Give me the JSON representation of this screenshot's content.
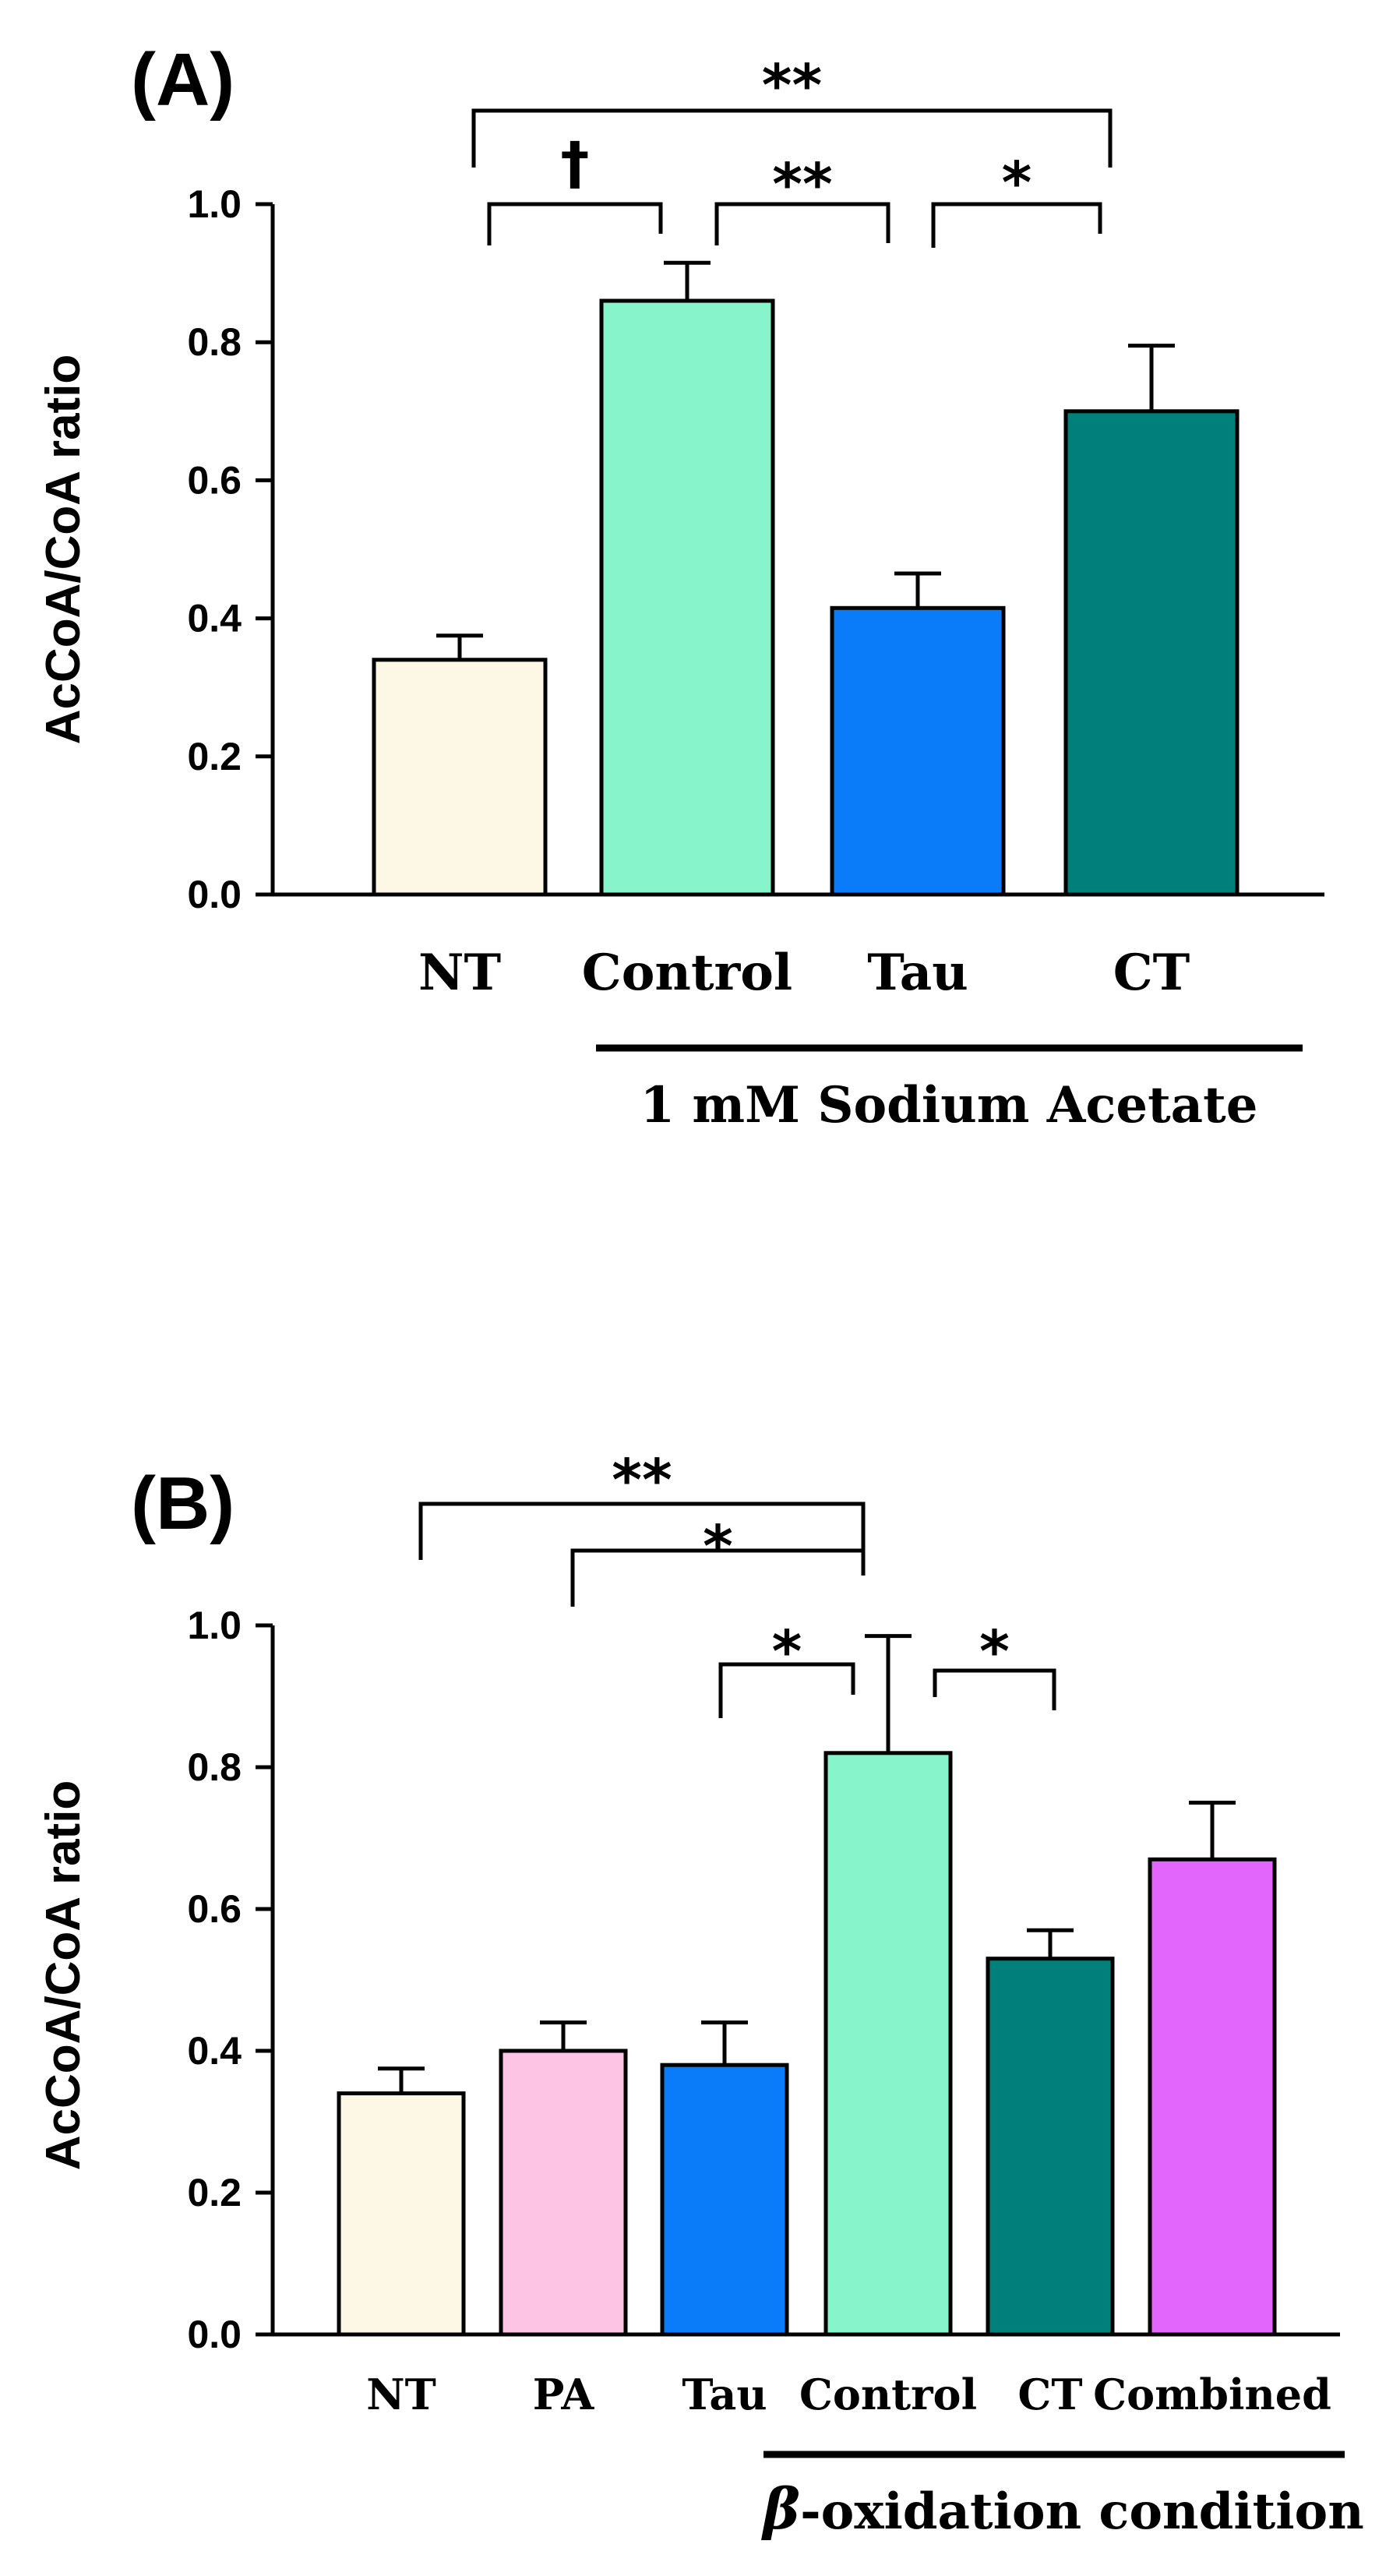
{
  "chart_data": [
    {
      "panel": "(A)",
      "type": "bar",
      "ylabel": "AcCoA/CoA ratio",
      "ylim": [
        0,
        1.0
      ],
      "yticks": [
        "0.0",
        "0.2",
        "0.4",
        "0.6",
        "0.8",
        "1.0"
      ],
      "categories": [
        "NT",
        "Control",
        "Tau",
        "CT"
      ],
      "values": [
        0.34,
        0.86,
        0.415,
        0.7
      ],
      "errors": [
        0.035,
        0.055,
        0.05,
        0.095
      ],
      "colors": [
        "#fdf8e6",
        "#88f4cc",
        "#0b7cf9",
        "#007f7b"
      ],
      "group_label": "1 mM Sodium Acetate",
      "group_categories": [
        "Control",
        "Tau",
        "CT"
      ],
      "significance": [
        {
          "from": "NT",
          "to": "CT",
          "label": "**"
        },
        {
          "from": "NT",
          "to": "Control",
          "label": "†"
        },
        {
          "from": "Control",
          "to": "Tau",
          "label": "**"
        },
        {
          "from": "Tau",
          "to": "CT",
          "label": "*"
        }
      ],
      "grid": false
    },
    {
      "panel": "(B)",
      "type": "bar",
      "ylabel": "AcCoA/CoA ratio",
      "ylim": [
        0,
        1.0
      ],
      "yticks": [
        "0.0",
        "0.2",
        "0.4",
        "0.6",
        "0.8",
        "1.0"
      ],
      "categories": [
        "NT",
        "PA",
        "Tau",
        "Control",
        "CT",
        "Combined"
      ],
      "values": [
        0.34,
        0.4,
        0.38,
        0.82,
        0.53,
        0.67
      ],
      "errors": [
        0.035,
        0.04,
        0.06,
        0.165,
        0.04,
        0.08
      ],
      "colors": [
        "#fdf8e6",
        "#fdc4e4",
        "#0b7cf9",
        "#88f4cc",
        "#007f7b",
        "#e266fb"
      ],
      "group_label_symbol": "β",
      "group_label": "-oxidation condition",
      "group_categories": [
        "Tau",
        "Control",
        "CT",
        "Combined"
      ],
      "significance": [
        {
          "from": "NT",
          "to": "Control",
          "label": "**"
        },
        {
          "from": "PA",
          "to": "Control",
          "label": "*"
        },
        {
          "from": "Tau",
          "to": "Control",
          "label": "*"
        },
        {
          "from": "Control",
          "to": "CT",
          "label": "*"
        }
      ],
      "grid": false
    }
  ]
}
